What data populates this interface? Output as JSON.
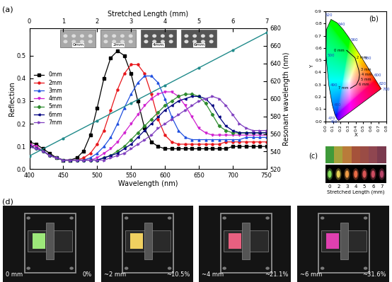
{
  "chart_data": [
    {
      "type": "line",
      "panel": "(a)",
      "xlabel": "Wavelength (nm)",
      "ylabel": "Reflection",
      "xlim": [
        400,
        750
      ],
      "xticks": [
        400,
        450,
        500,
        550,
        600,
        650,
        700,
        750
      ],
      "ylim": [
        0,
        0.62
      ],
      "yticks": [
        0.0,
        0.1,
        0.2,
        0.3,
        0.4,
        0.5
      ],
      "legend": "center left",
      "x": [
        400,
        410,
        420,
        430,
        440,
        450,
        460,
        470,
        480,
        490,
        500,
        510,
        520,
        530,
        540,
        550,
        560,
        570,
        580,
        590,
        600,
        610,
        620,
        630,
        640,
        650,
        660,
        670,
        680,
        690,
        700,
        710,
        720,
        730,
        740,
        750
      ],
      "series": [
        {
          "name": "0mm",
          "color": "#000000",
          "marker": "square",
          "values": [
            0.12,
            0.11,
            0.09,
            0.07,
            0.05,
            0.04,
            0.04,
            0.05,
            0.08,
            0.15,
            0.27,
            0.4,
            0.49,
            0.52,
            0.5,
            0.42,
            0.3,
            0.18,
            0.12,
            0.1,
            0.09,
            0.09,
            0.09,
            0.09,
            0.09,
            0.09,
            0.09,
            0.09,
            0.09,
            0.09,
            0.1,
            0.1,
            0.1,
            0.1,
            0.1,
            0.1
          ]
        },
        {
          "name": "2mm",
          "color": "#e8161b",
          "marker": "circle",
          "values": [
            0.11,
            0.1,
            0.08,
            0.06,
            0.05,
            0.04,
            0.04,
            0.04,
            0.05,
            0.07,
            0.11,
            0.17,
            0.26,
            0.35,
            0.42,
            0.46,
            0.46,
            0.42,
            0.33,
            0.22,
            0.15,
            0.12,
            0.11,
            0.11,
            0.11,
            0.11,
            0.11,
            0.11,
            0.11,
            0.12,
            0.12,
            0.12,
            0.12,
            0.12,
            0.12,
            0.12
          ]
        },
        {
          "name": "3mm",
          "color": "#2050e0",
          "marker": "triangle_up",
          "values": [
            0.11,
            0.1,
            0.08,
            0.06,
            0.05,
            0.04,
            0.04,
            0.04,
            0.04,
            0.05,
            0.07,
            0.1,
            0.14,
            0.2,
            0.27,
            0.33,
            0.38,
            0.41,
            0.41,
            0.38,
            0.31,
            0.23,
            0.17,
            0.14,
            0.13,
            0.13,
            0.13,
            0.13,
            0.13,
            0.13,
            0.13,
            0.13,
            0.14,
            0.14,
            0.14,
            0.14
          ]
        },
        {
          "name": "4mm",
          "color": "#d020d0",
          "marker": "triangle_down",
          "values": [
            0.11,
            0.1,
            0.08,
            0.06,
            0.05,
            0.04,
            0.04,
            0.04,
            0.04,
            0.04,
            0.05,
            0.07,
            0.09,
            0.12,
            0.16,
            0.2,
            0.24,
            0.28,
            0.31,
            0.33,
            0.34,
            0.34,
            0.32,
            0.28,
            0.23,
            0.18,
            0.16,
            0.15,
            0.15,
            0.15,
            0.15,
            0.15,
            0.15,
            0.15,
            0.15,
            0.15
          ]
        },
        {
          "name": "5mm",
          "color": "#2e8b2e",
          "marker": "diamond",
          "values": [
            0.1,
            0.09,
            0.08,
            0.06,
            0.05,
            0.04,
            0.04,
            0.04,
            0.04,
            0.04,
            0.04,
            0.05,
            0.06,
            0.08,
            0.1,
            0.13,
            0.16,
            0.19,
            0.22,
            0.25,
            0.28,
            0.3,
            0.32,
            0.33,
            0.33,
            0.32,
            0.29,
            0.24,
            0.19,
            0.17,
            0.16,
            0.16,
            0.16,
            0.16,
            0.16,
            0.16
          ]
        },
        {
          "name": "6mm",
          "color": "#000080",
          "marker": "triangle_left",
          "values": [
            0.1,
            0.09,
            0.08,
            0.06,
            0.05,
            0.04,
            0.04,
            0.04,
            0.04,
            0.04,
            0.04,
            0.05,
            0.06,
            0.07,
            0.09,
            0.11,
            0.14,
            0.17,
            0.2,
            0.23,
            0.26,
            0.28,
            0.3,
            0.31,
            0.32,
            0.32,
            0.31,
            0.28,
            0.23,
            0.19,
            0.17,
            0.16,
            0.16,
            0.16,
            0.16,
            0.16
          ]
        },
        {
          "name": "7mm",
          "color": "#8040c0",
          "marker": "triangle_right",
          "values": [
            0.1,
            0.09,
            0.08,
            0.06,
            0.05,
            0.04,
            0.04,
            0.04,
            0.04,
            0.04,
            0.04,
            0.04,
            0.05,
            0.06,
            0.07,
            0.09,
            0.11,
            0.13,
            0.15,
            0.18,
            0.2,
            0.22,
            0.24,
            0.26,
            0.28,
            0.3,
            0.31,
            0.32,
            0.31,
            0.28,
            0.24,
            0.2,
            0.18,
            0.17,
            0.17,
            0.17
          ]
        }
      ],
      "x2label": "Stretched Length (mm)",
      "x2lim": [
        0,
        7
      ],
      "x2ticks": [
        0,
        1,
        2,
        3,
        4,
        5,
        6,
        7
      ],
      "y2label": "Resonant wavelength (nm)",
      "y2lim": [
        520,
        680
      ],
      "y2ticks": [
        520,
        540,
        560,
        580,
        600,
        620,
        640,
        660,
        680
      ],
      "secondary_series": {
        "axis": "y2",
        "color": "#1f8a8a",
        "marker": "circle",
        "x": [
          0,
          1,
          2,
          3,
          4,
          5,
          6,
          7
        ],
        "values": [
          535,
          555,
          575,
          595,
          615,
          635,
          655,
          675
        ]
      },
      "insets": [
        "0mm",
        "2mm",
        "4mm",
        "6mm"
      ]
    },
    {
      "type": "chromaticity",
      "panel": "(b)",
      "xlabel": "X",
      "ylabel": "Y",
      "xlim": [
        0.0,
        0.8
      ],
      "xticks": [
        0.0,
        0.1,
        0.2,
        0.3,
        0.4,
        0.5,
        0.6,
        0.7,
        0.8
      ],
      "ylim": [
        0.0,
        0.9
      ],
      "yticks": [
        0.0,
        0.1,
        0.2,
        0.3,
        0.4,
        0.5,
        0.6,
        0.7,
        0.8,
        0.9
      ],
      "locus": {
        "x": [
          0.1741,
          0.1566,
          0.144,
          0.1241,
          0.0913,
          0.0454,
          0.0082,
          0.0139,
          0.0743,
          0.1547,
          0.2296,
          0.3016,
          0.3731,
          0.4441,
          0.5125,
          0.5752,
          0.627,
          0.6658,
          0.6915,
          0.719,
          0.7347
        ],
        "y": [
          0.005,
          0.0177,
          0.0297,
          0.0578,
          0.1327,
          0.295,
          0.5384,
          0.7502,
          0.8338,
          0.8059,
          0.7543,
          0.6923,
          0.6245,
          0.5547,
          0.4866,
          0.4242,
          0.3725,
          0.334,
          0.3083,
          0.2809,
          0.2653
        ],
        "labels": [
          null,
          null,
          460,
          470,
          480,
          490,
          500,
          null,
          520,
          null,
          540,
          null,
          560,
          null,
          580,
          null,
          600,
          null,
          620,
          null,
          700
        ]
      },
      "trajectory": {
        "color": "#000000",
        "x": [
          0.28,
          0.39,
          0.44,
          0.45,
          0.44,
          0.41,
          0.33
        ],
        "y": [
          0.58,
          0.52,
          0.42,
          0.38,
          0.34,
          0.3,
          0.27
        ],
        "labels": [
          "0 mm",
          "2 mm",
          "3 mm",
          "4 mm",
          "5 mm",
          "6 mm",
          "7 mm"
        ]
      }
    },
    {
      "type": "swatch",
      "panel": "(c)",
      "xlabel": "Stretched Length (mm)",
      "categories": [
        "0",
        "2",
        "3",
        "4",
        "5",
        "6",
        "7"
      ],
      "series": [
        {
          "type": "strip",
          "colors": [
            "#3f9a3a",
            "#a5a23c",
            "#b97b3a",
            "#a5523a",
            "#9a4c45",
            "#8f4650",
            "#7a3a4e"
          ]
        },
        {
          "type": "dot",
          "colors": [
            "#86e05a",
            "#e6cf55",
            "#ee9a45",
            "#e86a45",
            "#d85555",
            "#cc4c60",
            "#b84468"
          ]
        }
      ]
    },
    {
      "type": "photo",
      "panel": "(d)",
      "photos": [
        {
          "length": "0 mm",
          "strain": "0%",
          "color": "#9de87a"
        },
        {
          "length": "~2 mm",
          "strain": "~10.5%",
          "color": "#f0d060"
        },
        {
          "length": "~4 mm",
          "strain": "~21.1%",
          "color": "#e86080"
        },
        {
          "length": "~6 mm",
          "strain": "~31.6%",
          "color": "#e040b0"
        }
      ]
    }
  ]
}
